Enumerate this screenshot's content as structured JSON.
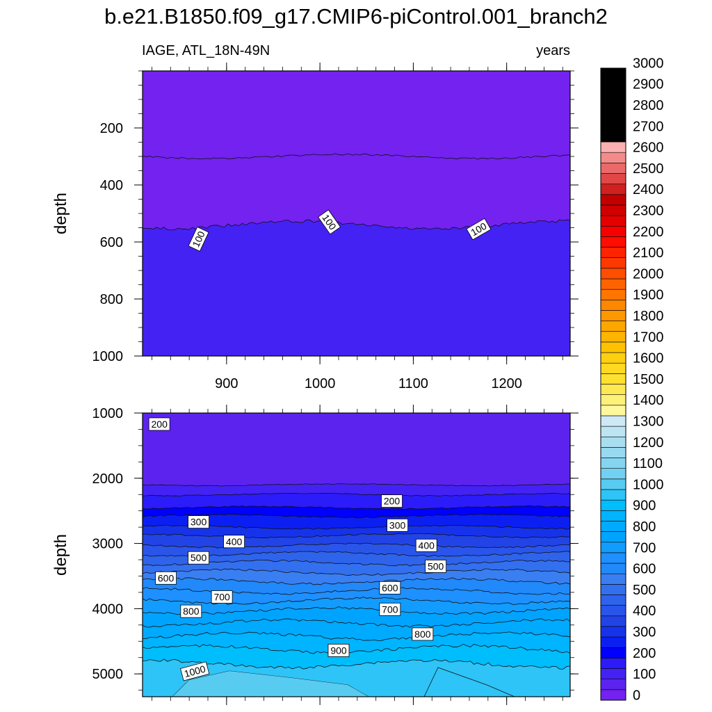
{
  "page": {
    "title": "b.e21.B1850.f09_g17.CMIP6-piControl.001_branch2",
    "subtitle_left": "IAGE, ATL_18N-49N",
    "subtitle_right": "years"
  },
  "chart_data": [
    {
      "type": "contour",
      "id": "upper-panel",
      "xlabel": "",
      "ylabel": "depth",
      "xlim": [
        810,
        1268
      ],
      "ylim": [
        1000,
        0
      ],
      "x_ticks": [
        900,
        1000,
        1100,
        1200
      ],
      "y_ticks": [
        200,
        400,
        600,
        800,
        1000
      ],
      "y_minor_step": 50,
      "x_minor_step": 20,
      "contour_levels": [
        {
          "level": 0,
          "depth_mean": 300
        },
        {
          "level": 100,
          "depth_mean": 540
        }
      ],
      "contour_labels": [
        {
          "text": "100",
          "x": 870,
          "depth": 590,
          "angle": -65
        },
        {
          "text": "100",
          "x": 1010,
          "depth": 530,
          "angle": 55
        },
        {
          "text": "100",
          "x": 1170,
          "depth": 555,
          "angle": -30
        }
      ]
    },
    {
      "type": "contour",
      "id": "lower-panel",
      "xlabel": "",
      "ylabel": "depth",
      "xlim": [
        810,
        1268
      ],
      "ylim": [
        5350,
        1000
      ],
      "x_ticks": [
        900,
        1000,
        1100,
        1200
      ],
      "y_ticks": [
        1000,
        2000,
        3000,
        4000,
        5000
      ],
      "y_minor_step": 250,
      "x_minor_step": 20,
      "contour_levels": [
        {
          "level": 100,
          "depth_mean": 2100
        },
        {
          "level": 150,
          "depth_mean": 2250
        },
        {
          "level": 200,
          "depth_mean": 2450
        },
        {
          "level": 250,
          "depth_mean": 2580
        },
        {
          "level": 300,
          "depth_mean": 2750
        },
        {
          "level": 350,
          "depth_mean": 2880
        },
        {
          "level": 400,
          "depth_mean": 3030
        },
        {
          "level": 450,
          "depth_mean": 3160
        },
        {
          "level": 500,
          "depth_mean": 3300
        },
        {
          "level": 550,
          "depth_mean": 3440
        },
        {
          "level": 600,
          "depth_mean": 3580
        },
        {
          "level": 650,
          "depth_mean": 3730
        },
        {
          "level": 700,
          "depth_mean": 3880
        },
        {
          "level": 750,
          "depth_mean": 4030
        },
        {
          "level": 800,
          "depth_mean": 4220
        },
        {
          "level": 850,
          "depth_mean": 4420
        },
        {
          "level": 900,
          "depth_mean": 4620
        },
        {
          "level": 950,
          "depth_mean": 4850
        }
      ],
      "contour_labels": [
        {
          "text": "200",
          "x": 828,
          "depth": 1170,
          "angle": 0
        },
        {
          "text": "200",
          "x": 1077,
          "depth": 2350,
          "angle": 0
        },
        {
          "text": "300",
          "x": 870,
          "depth": 2670,
          "angle": 0
        },
        {
          "text": "300",
          "x": 1083,
          "depth": 2720,
          "angle": 0
        },
        {
          "text": "400",
          "x": 908,
          "depth": 2970,
          "angle": 0
        },
        {
          "text": "400",
          "x": 1114,
          "depth": 3030,
          "angle": 0
        },
        {
          "text": "500",
          "x": 870,
          "depth": 3220,
          "angle": 0
        },
        {
          "text": "500",
          "x": 1124,
          "depth": 3350,
          "angle": 0
        },
        {
          "text": "600",
          "x": 835,
          "depth": 3530,
          "angle": 0
        },
        {
          "text": "600",
          "x": 1075,
          "depth": 3680,
          "angle": 0
        },
        {
          "text": "700",
          "x": 895,
          "depth": 3820,
          "angle": 0
        },
        {
          "text": "700",
          "x": 1075,
          "depth": 4010,
          "angle": 0
        },
        {
          "text": "800",
          "x": 862,
          "depth": 4040,
          "angle": 0
        },
        {
          "text": "800",
          "x": 1110,
          "depth": 4390,
          "angle": 0
        },
        {
          "text": "900",
          "x": 1020,
          "depth": 4640,
          "angle": 0
        },
        {
          "text": "1000",
          "x": 866,
          "depth": 4960,
          "angle": -15
        }
      ]
    }
  ],
  "colorbar": {
    "labels": [
      "0",
      "100",
      "200",
      "300",
      "400",
      "500",
      "600",
      "700",
      "800",
      "900",
      "1000",
      "1100",
      "1200",
      "1300",
      "1400",
      "1500",
      "1600",
      "1700",
      "1800",
      "1900",
      "2000",
      "2100",
      "2200",
      "2300",
      "2400",
      "2500",
      "2600",
      "2700",
      "2800",
      "2900",
      "3000"
    ],
    "colors": [
      "#7322ef",
      "#5c23ef",
      "#4422f4",
      "#2b1cf9",
      "#0000ff",
      "#0c1ff2",
      "#1633eb",
      "#2244e6",
      "#2a55ea",
      "#2e63ec",
      "#3370ef",
      "#3a7ff2",
      "#2189f9",
      "#1e90ff",
      "#129cff",
      "#00a4ff",
      "#00aaff",
      "#00b4ff",
      "#00bdfc",
      "#2ec4f7",
      "#58cbf1",
      "#72d0f0",
      "#85d5f0",
      "#97d9f0",
      "#a9def0",
      "#bde4f2",
      "#cde9f5",
      "#fef89d",
      "#fef17a",
      "#fee954",
      "#fee130",
      "#fed91f",
      "#fecf11",
      "#fec200",
      "#feb400",
      "#fea600",
      "#fe9700",
      "#fe8700",
      "#fe7600",
      "#fe6300",
      "#fe4e00",
      "#fe3900",
      "#fe2400",
      "#fe0e00",
      "#f70000",
      "#e50000",
      "#d00000",
      "#c20000",
      "#d02020",
      "#e04848",
      "#ea6a6a",
      "#f48a8a",
      "#fcb0b0"
    ],
    "levels": [
      0,
      50,
      100,
      150,
      200,
      250,
      300,
      350,
      400,
      450,
      500,
      550,
      600,
      650,
      700,
      750,
      800,
      850,
      900,
      950,
      1000,
      1050,
      1100,
      1150,
      1200,
      1250,
      1300,
      1350,
      1400,
      1450,
      1500,
      1550,
      1600,
      1650,
      1700,
      1750,
      1800,
      1850,
      1900,
      1950,
      2000,
      2050,
      2100,
      2150,
      2200,
      2250,
      2300,
      2350,
      2400,
      2450,
      2500,
      2550,
      2600,
      2650,
      2700,
      2750,
      2800,
      2850,
      2900,
      2950,
      3000
    ]
  }
}
